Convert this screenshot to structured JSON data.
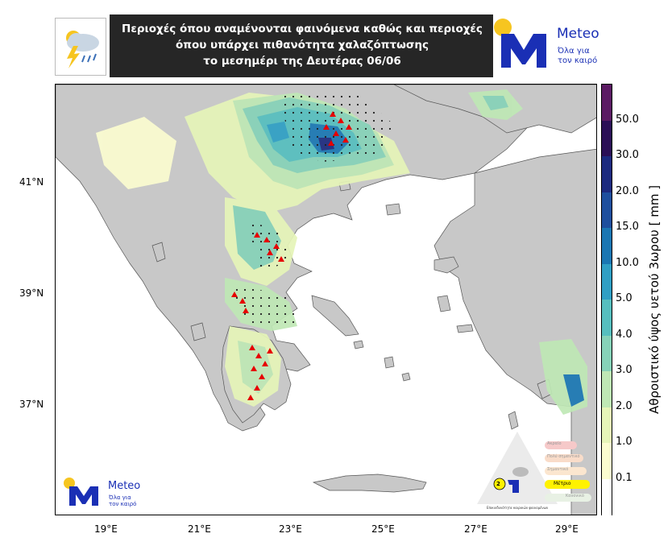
{
  "header": {
    "title_line1": "Περιοχές όπου αναμένονται φαινόμενα καθώς και περιοχές",
    "title_line2": "όπου υπάρχει πιθανότητα χαλαζόπτωσης",
    "title_line3": "το μεσημέρι της Δευτέρας 06/06",
    "weather_icon": "storm-cloud-lightning-icon"
  },
  "logo": {
    "brand": "Meteo",
    "tagline_line1": "Όλα για",
    "tagline_line2": "τον καιρό"
  },
  "map_logo": {
    "brand": "Meteo",
    "tagline_line1": "Όλα για",
    "tagline_line2": "τον καιρό"
  },
  "axes": {
    "lat_labels": [
      "41°N",
      "39°N",
      "37°N"
    ],
    "lon_labels": [
      "19°E",
      "21°E",
      "23°E",
      "25°E",
      "27°E",
      "29°E"
    ]
  },
  "colorbar": {
    "title": "Αθροιστικό ύψος υετού 3ωρου [ mm ]",
    "labels": [
      "50.0",
      "30.0",
      "20.0",
      "15.0",
      "10.0",
      "5.0",
      "4.0",
      "3.0",
      "2.0",
      "1.0",
      "0.1"
    ],
    "colors": [
      "#ffffff",
      "#fbfdd0",
      "#e6f5b8",
      "#bfe8b5",
      "#86d2b8",
      "#56bfbf",
      "#2f9fc4",
      "#1a77b3",
      "#1e4f9e",
      "#1c2a7f",
      "#2b0f56",
      "#5b1a63"
    ]
  },
  "pyramid_legend": {
    "levels": [
      "Ακραίο",
      "Πολύ σημαντικό",
      "Σημαντικό",
      "Μέτριο",
      "Κανονικό"
    ],
    "active_level": "Μέτριο",
    "active_number": "2",
    "caption": "Επικινδυνότητα καιρικών φαινομένων"
  }
}
